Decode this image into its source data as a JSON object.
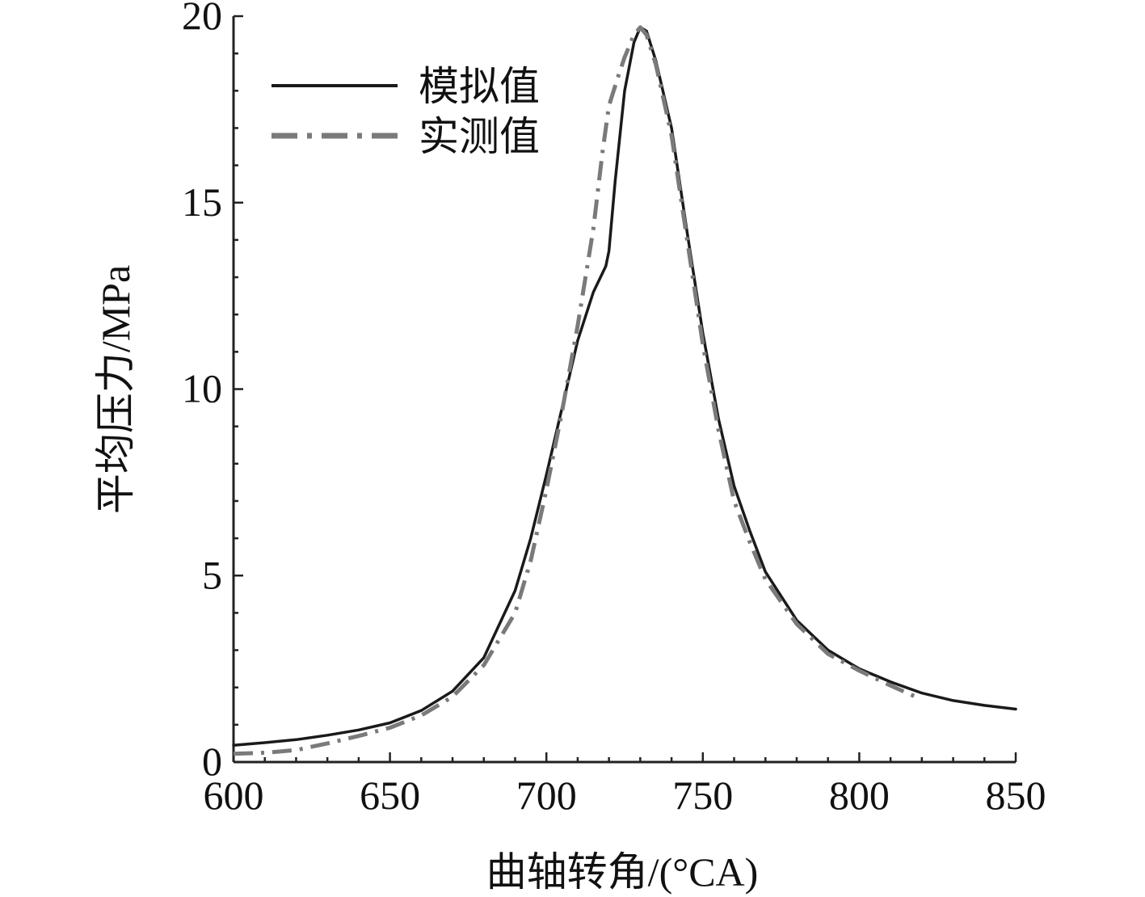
{
  "chart_data": {
    "type": "line",
    "title": "",
    "xlabel": "曲轴转角/(°CA)",
    "ylabel": "平均压力/MPa",
    "xlim": [
      600,
      850
    ],
    "ylim": [
      0,
      20
    ],
    "x_ticks": [
      600,
      650,
      700,
      750,
      800,
      850
    ],
    "y_ticks": [
      0,
      5,
      10,
      15,
      20
    ],
    "grid": false,
    "legend_position": "top-left",
    "series": [
      {
        "name": "模拟值",
        "style": "solid",
        "color": "#1a1a1a",
        "points": [
          [
            600,
            0.45
          ],
          [
            610,
            0.52
          ],
          [
            620,
            0.6
          ],
          [
            630,
            0.72
          ],
          [
            640,
            0.86
          ],
          [
            650,
            1.05
          ],
          [
            660,
            1.38
          ],
          [
            670,
            1.9
          ],
          [
            680,
            2.8
          ],
          [
            690,
            4.6
          ],
          [
            695,
            6.0
          ],
          [
            700,
            7.7
          ],
          [
            705,
            9.5
          ],
          [
            710,
            11.3
          ],
          [
            715,
            12.6
          ],
          [
            719,
            13.3
          ],
          [
            720,
            13.7
          ],
          [
            722,
            15.6
          ],
          [
            725,
            18.0
          ],
          [
            728,
            19.3
          ],
          [
            730,
            19.7
          ],
          [
            732,
            19.6
          ],
          [
            735,
            18.8
          ],
          [
            740,
            17.0
          ],
          [
            745,
            14.2
          ],
          [
            750,
            11.5
          ],
          [
            755,
            9.2
          ],
          [
            760,
            7.4
          ],
          [
            765,
            6.2
          ],
          [
            770,
            5.1
          ],
          [
            780,
            3.8
          ],
          [
            790,
            3.0
          ],
          [
            800,
            2.5
          ],
          [
            810,
            2.15
          ],
          [
            820,
            1.85
          ],
          [
            830,
            1.65
          ],
          [
            840,
            1.52
          ],
          [
            850,
            1.42
          ]
        ]
      },
      {
        "name": "实测值",
        "style": "dash-dot",
        "color": "#7a7a7a",
        "points": [
          [
            600,
            0.22
          ],
          [
            610,
            0.25
          ],
          [
            620,
            0.32
          ],
          [
            630,
            0.5
          ],
          [
            640,
            0.7
          ],
          [
            650,
            0.92
          ],
          [
            660,
            1.25
          ],
          [
            670,
            1.75
          ],
          [
            680,
            2.6
          ],
          [
            690,
            4.0
          ],
          [
            695,
            5.4
          ],
          [
            700,
            7.3
          ],
          [
            705,
            9.4
          ],
          [
            710,
            11.7
          ],
          [
            715,
            14.3
          ],
          [
            718,
            16.4
          ],
          [
            720,
            17.6
          ],
          [
            723,
            18.4
          ],
          [
            725,
            18.9
          ],
          [
            728,
            19.5
          ],
          [
            730,
            19.7
          ],
          [
            732,
            19.5
          ],
          [
            735,
            18.7
          ],
          [
            740,
            16.8
          ],
          [
            745,
            14.0
          ],
          [
            750,
            11.2
          ],
          [
            755,
            8.9
          ],
          [
            760,
            7.0
          ],
          [
            765,
            5.9
          ],
          [
            770,
            4.9
          ],
          [
            780,
            3.7
          ],
          [
            790,
            2.9
          ],
          [
            800,
            2.45
          ],
          [
            810,
            2.05
          ],
          [
            818,
            1.75
          ]
        ]
      }
    ]
  }
}
